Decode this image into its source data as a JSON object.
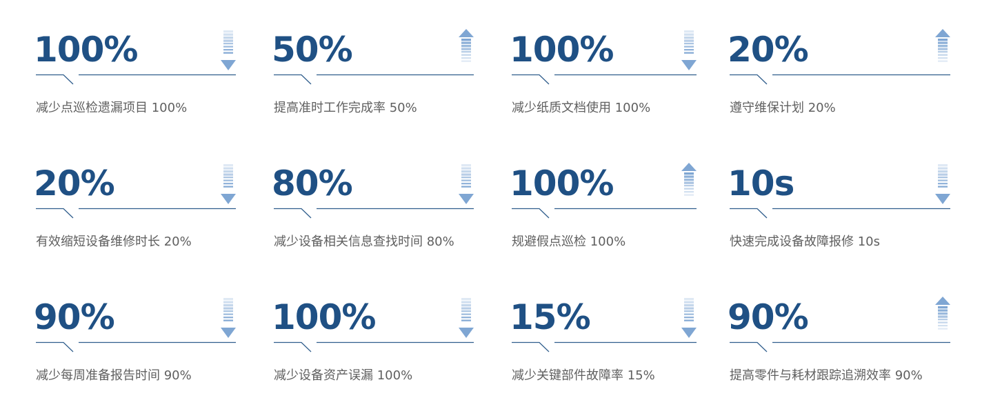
{
  "colors": {
    "number": "#1f5084",
    "line": "#2f5d8c",
    "arrow": "#7fa6d3",
    "label": "#5f5f5f"
  },
  "cards": [
    {
      "value": "100%",
      "label": "减少点巡检遗漏项目 100%",
      "trend": "down"
    },
    {
      "value": "50%",
      "label": "提高准时工作完成率 50%",
      "trend": "up"
    },
    {
      "value": "100%",
      "label": "减少纸质文档使用 100%",
      "trend": "down"
    },
    {
      "value": "20%",
      "label": "遵守维保计划 20%",
      "trend": "up"
    },
    {
      "value": "20%",
      "label": "有效缩短设备维修时长 20%",
      "trend": "down"
    },
    {
      "value": "80%",
      "label": "减少设备相关信息查找时间 80%",
      "trend": "down"
    },
    {
      "value": "100%",
      "label": "规避假点巡检 100%",
      "trend": "up"
    },
    {
      "value": "10s",
      "label": "快速完成设备故障报修 10s",
      "trend": "down"
    },
    {
      "value": "90%",
      "label": "减少每周准备报告时间 90%",
      "trend": "down"
    },
    {
      "value": "100%",
      "label": "减少设备资产误漏 100%",
      "trend": "down"
    },
    {
      "value": "15%",
      "label": "减少关键部件故障率 15%",
      "trend": "down"
    },
    {
      "value": "90%",
      "label": "提高零件与耗材跟踪追溯效率 90%",
      "trend": "up"
    }
  ]
}
